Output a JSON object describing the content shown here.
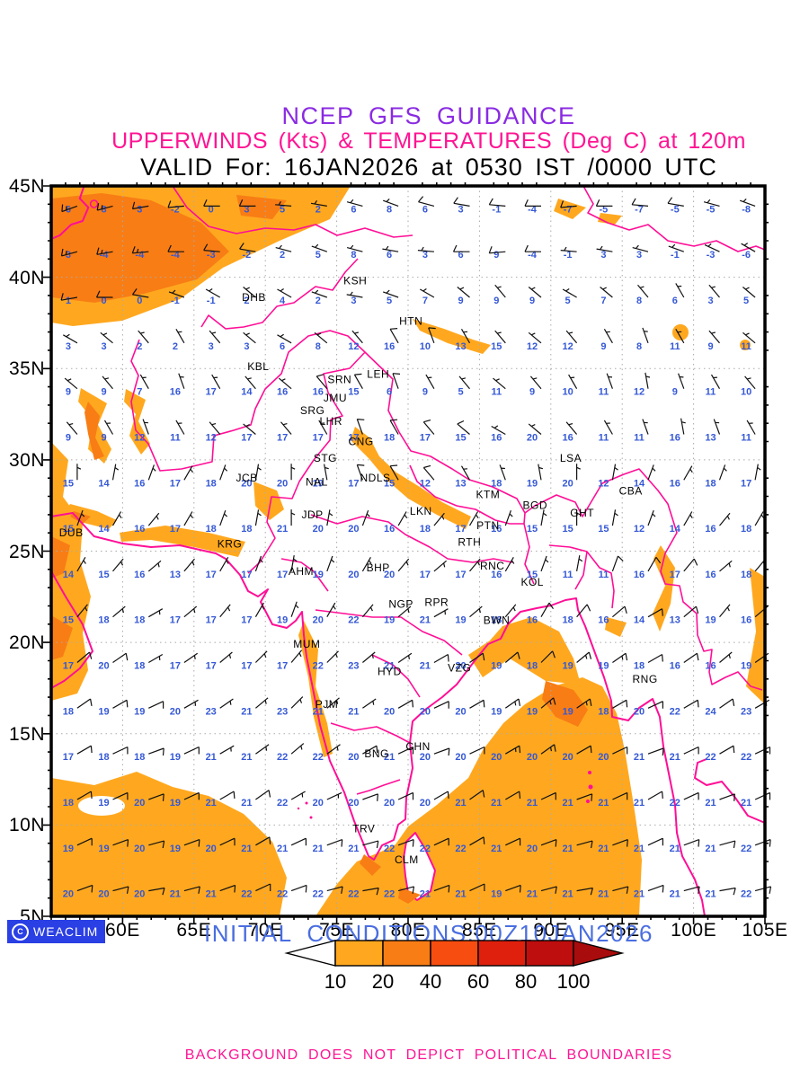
{
  "title": {
    "line1": "NCEP GFS GUIDANCE",
    "line2": "UPPERWINDS (Kts) & TEMPERATURES (Deg C) at 120m",
    "line3": "VALID For: 16JAN2026 at 0530 IST /0000 UTC"
  },
  "colors": {
    "title_purple": "#8A2BE2",
    "magenta": "#FF1493",
    "coast_pink": "#FF0E96",
    "temp_blue": "#3558D6",
    "grid_gray": "#AAAAAA",
    "shade_light": "#FFA81F",
    "shade_dark": "#F87D15",
    "logo_bg": "#2A3FE4",
    "init_blue": "#4A6EE0"
  },
  "axes": {
    "lat_labels": [
      "45N",
      "40N",
      "35N",
      "30N",
      "25N",
      "20N",
      "15N",
      "10N",
      "5N"
    ],
    "lon_labels": [
      "55E",
      "60E",
      "65E",
      "70E",
      "75E",
      "80E",
      "85E",
      "90E",
      "95E",
      "100E",
      "105E"
    ],
    "lon_range": [
      55,
      105
    ],
    "lat_range": [
      5,
      45
    ],
    "grid_step_deg": 5
  },
  "stations": [
    {
      "id": "DUB",
      "lon": 56.4,
      "lat": 26.0
    },
    {
      "id": "KRG",
      "lon": 67.5,
      "lat": 25.4
    },
    {
      "id": "JCB",
      "lon": 68.7,
      "lat": 29.0
    },
    {
      "id": "DHB",
      "lon": 69.2,
      "lat": 38.9
    },
    {
      "id": "KSH",
      "lon": 76.3,
      "lat": 39.8
    },
    {
      "id": "HTN",
      "lon": 80.2,
      "lat": 37.6
    },
    {
      "id": "KBL",
      "lon": 69.5,
      "lat": 35.1
    },
    {
      "id": "SRN",
      "lon": 75.2,
      "lat": 34.4
    },
    {
      "id": "LEH",
      "lon": 77.9,
      "lat": 34.7
    },
    {
      "id": "JMU",
      "lon": 74.9,
      "lat": 33.4
    },
    {
      "id": "SRG",
      "lon": 73.3,
      "lat": 32.7
    },
    {
      "id": "LHR",
      "lon": 74.6,
      "lat": 32.1
    },
    {
      "id": "CNG",
      "lon": 76.7,
      "lat": 31.0
    },
    {
      "id": "STG",
      "lon": 74.2,
      "lat": 30.1
    },
    {
      "id": "NAL",
      "lon": 73.6,
      "lat": 28.8
    },
    {
      "id": "NDLS",
      "lon": 77.7,
      "lat": 29.0
    },
    {
      "id": "JDP",
      "lon": 73.3,
      "lat": 27.0
    },
    {
      "id": "LKN",
      "lon": 80.9,
      "lat": 27.2
    },
    {
      "id": "KTM",
      "lon": 85.6,
      "lat": 28.1
    },
    {
      "id": "LSA",
      "lon": 91.4,
      "lat": 30.1
    },
    {
      "id": "BGD",
      "lon": 88.9,
      "lat": 27.5
    },
    {
      "id": "CBA",
      "lon": 95.6,
      "lat": 28.3
    },
    {
      "id": "GHT",
      "lon": 92.2,
      "lat": 27.1
    },
    {
      "id": "PTN",
      "lon": 85.6,
      "lat": 26.4
    },
    {
      "id": "RTH",
      "lon": 84.3,
      "lat": 25.5
    },
    {
      "id": "AHM",
      "lon": 72.5,
      "lat": 23.9
    },
    {
      "id": "BHP",
      "lon": 77.9,
      "lat": 24.1
    },
    {
      "id": "RNC",
      "lon": 85.9,
      "lat": 24.2
    },
    {
      "id": "KOL",
      "lon": 88.7,
      "lat": 23.3
    },
    {
      "id": "NGP",
      "lon": 79.5,
      "lat": 22.1
    },
    {
      "id": "RPR",
      "lon": 82.0,
      "lat": 22.2
    },
    {
      "id": "BWN",
      "lon": 86.2,
      "lat": 21.2
    },
    {
      "id": "MUM",
      "lon": 72.9,
      "lat": 19.9
    },
    {
      "id": "HYD",
      "lon": 78.7,
      "lat": 18.4
    },
    {
      "id": "VZG",
      "lon": 83.6,
      "lat": 18.6
    },
    {
      "id": "PJM",
      "lon": 74.3,
      "lat": 16.6
    },
    {
      "id": "RNG",
      "lon": 96.6,
      "lat": 18.0
    },
    {
      "id": "CHN",
      "lon": 80.7,
      "lat": 14.3
    },
    {
      "id": "BNG",
      "lon": 77.8,
      "lat": 13.9
    },
    {
      "id": "TRV",
      "lon": 76.9,
      "lat": 9.8
    },
    {
      "id": "CLM",
      "lon": 79.9,
      "lat": 8.1
    }
  ],
  "field": {
    "lons": [
      56.25,
      58.75,
      61.25,
      63.75,
      66.25,
      68.75,
      71.25,
      73.75,
      76.25,
      78.75,
      81.25,
      83.75,
      86.25,
      88.75,
      91.25,
      93.75,
      96.25,
      98.75,
      101.25,
      103.75
    ],
    "lats": [
      43.75,
      41.25,
      38.75,
      36.25,
      33.75,
      31.25,
      28.75,
      26.25,
      23.75,
      21.25,
      18.75,
      16.25,
      13.75,
      11.25,
      8.75,
      6.25
    ],
    "temps": [
      [
        6,
        8,
        3,
        -2,
        0,
        3,
        5,
        2,
        6,
        8,
        6,
        3,
        -1,
        -4,
        -7,
        -5,
        -7,
        -5,
        -5,
        -8
      ],
      [
        3,
        -4,
        -4,
        -4,
        -3,
        -2,
        2,
        5,
        8,
        6,
        3,
        6,
        9,
        -4,
        -1,
        3,
        3,
        -1,
        -3,
        -6
      ],
      [
        1,
        0,
        0,
        -1,
        -1,
        2,
        4,
        2,
        3,
        5,
        7,
        9,
        9,
        9,
        5,
        7,
        8,
        6,
        3,
        5
      ],
      [
        3,
        3,
        2,
        2,
        3,
        3,
        6,
        8,
        12,
        16,
        10,
        13,
        15,
        12,
        12,
        9,
        8,
        11,
        9,
        11
      ],
      [
        9,
        9,
        7,
        16,
        17,
        14,
        16,
        16,
        15,
        6,
        9,
        5,
        11,
        9,
        10,
        11,
        12,
        9,
        11,
        10
      ],
      [
        9,
        9,
        12,
        11,
        12,
        17,
        17,
        17,
        17,
        18,
        17,
        15,
        16,
        20,
        16,
        11,
        11,
        16,
        13,
        11
      ],
      [
        15,
        14,
        16,
        17,
        18,
        20,
        20,
        19,
        17,
        15,
        12,
        13,
        18,
        19,
        20,
        12,
        14,
        16,
        18,
        17
      ],
      [
        15,
        14,
        16,
        17,
        18,
        18,
        21,
        20,
        20,
        16,
        18,
        17,
        16,
        15,
        15,
        15,
        12,
        14,
        16,
        18
      ],
      [
        14,
        15,
        16,
        13,
        17,
        17,
        17,
        19,
        20,
        20,
        17,
        17,
        16,
        15,
        11,
        11,
        16,
        17,
        16,
        18
      ],
      [
        15,
        18,
        18,
        17,
        17,
        17,
        19,
        20,
        22,
        19,
        21,
        19,
        18,
        16,
        18,
        16,
        14,
        13,
        19,
        16
      ],
      [
        17,
        20,
        18,
        17,
        17,
        17,
        17,
        22,
        23,
        21,
        21,
        20,
        19,
        18,
        19,
        19,
        18,
        16,
        16,
        19
      ],
      [
        18,
        19,
        19,
        20,
        23,
        21,
        23,
        21,
        21,
        20,
        20,
        20,
        19,
        19,
        19,
        18,
        20,
        22,
        24,
        23
      ],
      [
        17,
        18,
        18,
        19,
        21,
        21,
        22,
        22,
        20,
        21,
        20,
        20,
        20,
        20,
        20,
        20,
        21,
        21,
        22,
        22
      ],
      [
        18,
        19,
        20,
        19,
        21,
        21,
        22,
        20,
        20,
        20,
        20,
        21,
        21,
        21,
        21,
        21,
        21,
        22,
        21,
        21
      ],
      [
        19,
        19,
        20,
        19,
        20,
        21,
        21,
        21,
        21,
        22,
        22,
        22,
        21,
        20,
        21,
        21,
        21,
        21,
        21,
        22
      ],
      [
        20,
        20,
        20,
        21,
        21,
        22,
        22,
        22,
        22,
        22,
        21,
        21,
        19,
        21,
        21,
        21,
        21,
        21,
        21,
        22
      ]
    ],
    "wind_dir": [
      [
        250,
        255,
        260,
        265,
        270,
        270,
        275,
        280,
        285,
        290,
        285,
        280,
        275,
        270,
        265,
        270,
        275,
        280,
        285,
        290
      ],
      [
        255,
        260,
        265,
        270,
        275,
        280,
        285,
        290,
        285,
        280,
        275,
        270,
        265,
        270,
        275,
        280,
        285,
        290,
        295,
        300
      ],
      [
        260,
        270,
        280,
        290,
        300,
        310,
        300,
        290,
        280,
        290,
        300,
        310,
        320,
        310,
        300,
        310,
        320,
        330,
        320,
        310
      ],
      [
        300,
        310,
        320,
        330,
        320,
        310,
        300,
        310,
        320,
        330,
        340,
        330,
        320,
        310,
        320,
        330,
        340,
        330,
        320,
        310
      ],
      [
        310,
        320,
        330,
        340,
        330,
        320,
        310,
        320,
        330,
        340,
        330,
        320,
        310,
        320,
        330,
        340,
        350,
        340,
        330,
        320
      ],
      [
        320,
        330,
        340,
        330,
        320,
        310,
        320,
        330,
        340,
        330,
        320,
        310,
        300,
        310,
        320,
        330,
        340,
        350,
        340,
        330
      ],
      [
        0,
        10,
        20,
        30,
        20,
        10,
        0,
        350,
        340,
        330,
        320,
        330,
        340,
        350,
        0,
        10,
        20,
        30,
        20,
        10
      ],
      [
        20,
        30,
        40,
        30,
        20,
        10,
        0,
        10,
        20,
        30,
        40,
        30,
        20,
        10,
        0,
        10,
        20,
        30,
        40,
        30
      ],
      [
        30,
        40,
        50,
        40,
        30,
        20,
        10,
        20,
        30,
        40,
        50,
        40,
        30,
        20,
        10,
        20,
        30,
        40,
        50,
        40
      ],
      [
        40,
        50,
        60,
        50,
        40,
        30,
        20,
        30,
        40,
        50,
        60,
        50,
        40,
        30,
        40,
        50,
        60,
        50,
        40,
        50
      ],
      [
        50,
        55,
        60,
        55,
        50,
        45,
        40,
        45,
        50,
        55,
        60,
        55,
        50,
        45,
        50,
        55,
        60,
        55,
        50,
        55
      ],
      [
        55,
        60,
        65,
        60,
        55,
        50,
        45,
        50,
        55,
        60,
        65,
        60,
        55,
        50,
        55,
        60,
        65,
        60,
        55,
        60
      ],
      [
        60,
        65,
        70,
        65,
        60,
        55,
        50,
        55,
        60,
        65,
        70,
        65,
        60,
        55,
        60,
        65,
        70,
        65,
        60,
        65
      ],
      [
        60,
        65,
        70,
        65,
        60,
        55,
        60,
        65,
        70,
        65,
        60,
        55,
        60,
        65,
        70,
        65,
        60,
        65,
        70,
        65
      ],
      [
        65,
        70,
        75,
        70,
        65,
        60,
        65,
        70,
        75,
        70,
        65,
        60,
        65,
        70,
        75,
        70,
        65,
        70,
        75,
        70
      ],
      [
        70,
        75,
        80,
        75,
        70,
        65,
        70,
        75,
        80,
        75,
        70,
        65,
        70,
        75,
        80,
        75,
        70,
        75,
        80,
        75
      ]
    ],
    "wind_spd": [
      [
        15,
        15,
        10,
        10,
        10,
        10,
        5,
        5,
        5,
        5,
        10,
        10,
        10,
        10,
        10,
        10,
        10,
        10,
        5,
        5
      ],
      [
        15,
        15,
        15,
        10,
        10,
        10,
        5,
        5,
        5,
        5,
        5,
        10,
        10,
        10,
        5,
        5,
        5,
        5,
        5,
        5
      ],
      [
        10,
        10,
        10,
        5,
        5,
        5,
        5,
        5,
        5,
        5,
        5,
        5,
        5,
        5,
        5,
        5,
        5,
        5,
        5,
        5
      ],
      [
        5,
        5,
        5,
        5,
        5,
        5,
        5,
        5,
        5,
        10,
        10,
        5,
        5,
        5,
        5,
        5,
        5,
        5,
        5,
        5
      ],
      [
        5,
        5,
        5,
        5,
        5,
        5,
        5,
        10,
        10,
        10,
        5,
        5,
        5,
        5,
        5,
        5,
        5,
        5,
        5,
        5
      ],
      [
        5,
        5,
        5,
        5,
        5,
        5,
        5,
        5,
        10,
        10,
        10,
        10,
        5,
        5,
        5,
        5,
        5,
        5,
        5,
        5
      ],
      [
        5,
        5,
        5,
        5,
        5,
        5,
        5,
        5,
        10,
        10,
        10,
        5,
        5,
        5,
        5,
        5,
        5,
        5,
        5,
        5
      ],
      [
        5,
        5,
        5,
        5,
        5,
        5,
        5,
        5,
        5,
        5,
        5,
        5,
        5,
        5,
        5,
        5,
        5,
        5,
        5,
        5
      ],
      [
        5,
        5,
        5,
        5,
        5,
        5,
        5,
        5,
        5,
        5,
        5,
        5,
        5,
        5,
        5,
        10,
        10,
        10,
        5,
        5
      ],
      [
        5,
        5,
        5,
        5,
        5,
        5,
        5,
        5,
        5,
        5,
        5,
        5,
        5,
        10,
        10,
        10,
        10,
        10,
        5,
        5
      ],
      [
        10,
        10,
        5,
        5,
        5,
        5,
        5,
        5,
        5,
        5,
        10,
        10,
        10,
        10,
        15,
        15,
        10,
        10,
        5,
        5
      ],
      [
        10,
        10,
        10,
        5,
        5,
        5,
        5,
        5,
        5,
        10,
        10,
        10,
        15,
        15,
        15,
        10,
        10,
        10,
        10,
        5
      ],
      [
        10,
        10,
        10,
        10,
        5,
        5,
        5,
        5,
        10,
        10,
        10,
        10,
        15,
        15,
        10,
        10,
        10,
        10,
        10,
        10
      ],
      [
        10,
        10,
        10,
        10,
        10,
        10,
        5,
        5,
        10,
        10,
        10,
        10,
        10,
        10,
        10,
        10,
        10,
        10,
        10,
        10
      ],
      [
        10,
        10,
        10,
        10,
        10,
        10,
        10,
        10,
        10,
        10,
        10,
        10,
        10,
        10,
        10,
        10,
        10,
        10,
        10,
        10
      ],
      [
        10,
        10,
        10,
        10,
        10,
        10,
        10,
        10,
        10,
        10,
        10,
        10,
        10,
        10,
        10,
        10,
        10,
        10,
        10,
        10
      ]
    ]
  },
  "footer": {
    "logo": {
      "symbol": "C",
      "text": "WEACLIM"
    },
    "initial_conditions": "INITIAL CONDITIONS:00Z10JAN2026",
    "colorbar": {
      "labels": [
        "10",
        "20",
        "40",
        "60",
        "80",
        "100"
      ],
      "box_colors": [
        "#FFA81F",
        "#F87D15",
        "#F84D10",
        "#DE200D",
        "#BE0E0E"
      ],
      "left_arrow_color": "#FFFFFF",
      "right_arrow_color": "#A90C0C"
    },
    "disclaimer": "BACKGROUND DOES NOT DEPICT POLITICAL BOUNDARIES"
  }
}
